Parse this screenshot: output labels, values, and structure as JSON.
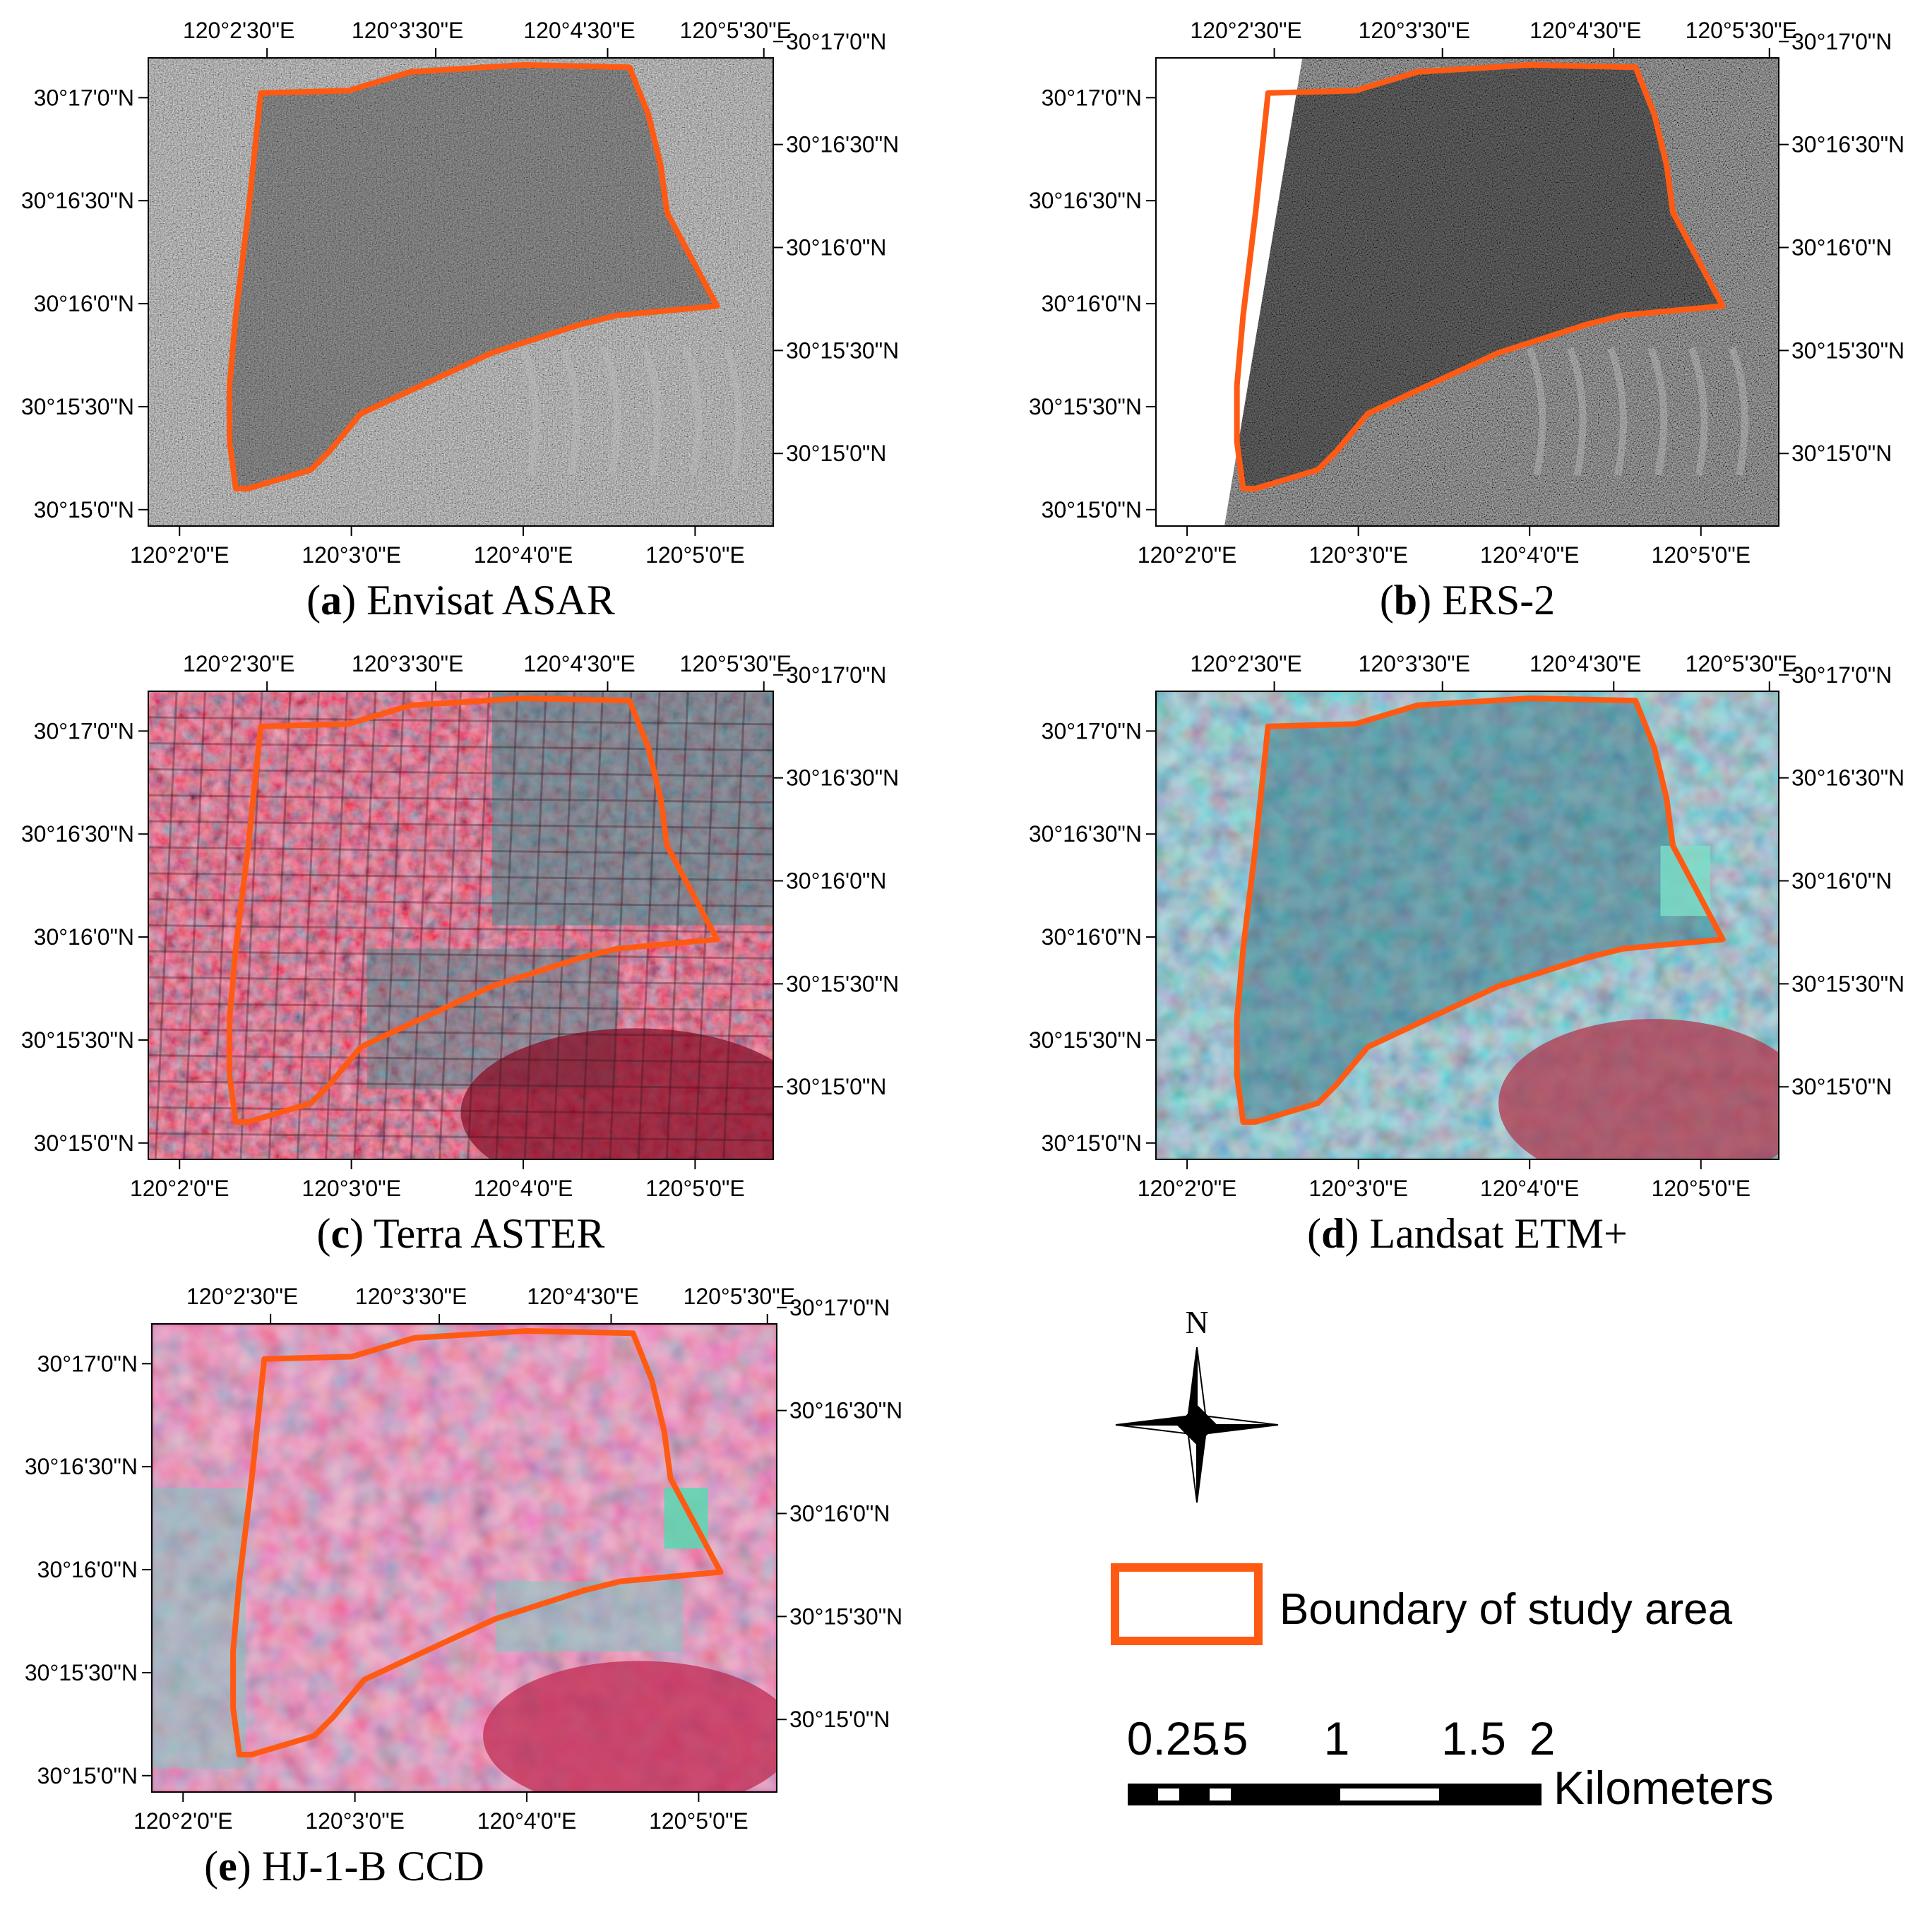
{
  "panels": [
    {
      "id": "a",
      "letter": "a",
      "name": " Envisat ASAR",
      "style": "sar",
      "top_lon": [
        "120°2'30\"E",
        "120°3'30\"E",
        "120°4'30\"E",
        "120°5'30\"E"
      ],
      "bottom_lon": [
        "120°2'0\"E",
        "120°3'0\"E",
        "120°4'0\"E",
        "120°5'0\"E"
      ],
      "left_lat": [
        "30°17'0\"N",
        "30°16'30\"N",
        "30°16'0\"N",
        "30°15'30\"N",
        "30°15'0\"N"
      ],
      "right_lat": [
        "30°17'0\"N",
        "30°16'30\"N",
        "30°16'0\"N",
        "30°15'30\"N",
        "30°15'0\"N"
      ]
    },
    {
      "id": "b",
      "letter": "b",
      "name": " ERS-2",
      "style": "sar-dark",
      "top_lon": [
        "120°2'30\"E",
        "120°3'30\"E",
        "120°4'30\"E",
        "120°5'30\"E"
      ],
      "bottom_lon": [
        "120°2'0\"E",
        "120°3'0\"E",
        "120°4'0\"E",
        "120°5'0\"E"
      ],
      "left_lat": [
        "30°17'0\"N",
        "30°16'30\"N",
        "30°16'0\"N",
        "30°15'30\"N",
        "30°15'0\"N"
      ],
      "right_lat": [
        "30°17'0\"N",
        "30°16'30\"N",
        "30°16'0\"N",
        "30°15'30\"N",
        "30°15'0\"N"
      ]
    },
    {
      "id": "c",
      "letter": "c",
      "name": " Terra ASTER",
      "style": "aster",
      "top_lon": [
        "120°2'30\"E",
        "120°3'30\"E",
        "120°4'30\"E",
        "120°5'30\"E"
      ],
      "bottom_lon": [
        "120°2'0\"E",
        "120°3'0\"E",
        "120°4'0\"E",
        "120°5'0\"E"
      ],
      "left_lat": [
        "30°17'0\"N",
        "30°16'30\"N",
        "30°16'0\"N",
        "30°15'30\"N",
        "30°15'0\"N"
      ],
      "right_lat": [
        "30°17'0\"N",
        "30°16'30\"N",
        "30°16'0\"N",
        "30°15'30\"N",
        "30°15'0\"N"
      ]
    },
    {
      "id": "d",
      "letter": "d",
      "name": " Landsat ETM+",
      "style": "landsat",
      "top_lon": [
        "120°2'30\"E",
        "120°3'30\"E",
        "120°4'30\"E",
        "120°5'30\"E"
      ],
      "bottom_lon": [
        "120°2'0\"E",
        "120°3'0\"E",
        "120°4'0\"E",
        "120°5'0\"E"
      ],
      "left_lat": [
        "30°17'0\"N",
        "30°16'30\"N",
        "30°16'0\"N",
        "30°15'30\"N",
        "30°15'0\"N"
      ],
      "right_lat": [
        "30°17'0\"N",
        "30°16'30\"N",
        "30°16'0\"N",
        "30°15'30\"N",
        "30°15'0\"N"
      ]
    },
    {
      "id": "e",
      "letter": "e",
      "name": " HJ-1-B CCD",
      "style": "hj",
      "top_lon": [
        "120°2'30\"E",
        "120°3'30\"E",
        "120°4'30\"E",
        "120°5'30\"E"
      ],
      "bottom_lon": [
        "120°2'0\"E",
        "120°3'0\"E",
        "120°4'0\"E",
        "120°5'0\"E"
      ],
      "left_lat": [
        "30°17'0\"N",
        "30°16'30\"N",
        "30°16'0\"N",
        "30°15'30\"N",
        "30°15'0\"N"
      ],
      "right_lat": [
        "30°17'0\"N",
        "30°16'30\"N",
        "30°16'0\"N",
        "30°15'30\"N",
        "30°15'0\"N"
      ]
    }
  ],
  "north_arrow": {
    "label": "N"
  },
  "legend": {
    "label": "Boundary of study area",
    "color": "#ff5a14"
  },
  "scale_bar": {
    "labels": [
      "0.25",
      ".5",
      "1",
      "1.5",
      "2"
    ],
    "unit": "Kilometers"
  },
  "colors": {
    "boundary": "#ff5a14",
    "sar_base": "#5a5a5a",
    "sar_dark_base": "#3c3c3c",
    "aster_red": "#c8123c",
    "aster_dark": "#3a1620",
    "aster_teal": "#3c8c8c",
    "landsat_teal": "#4a9aa0",
    "landsat_pink": "#d07a90",
    "hj_pink": "#d04a78",
    "hj_teal": "#78c8c0"
  }
}
